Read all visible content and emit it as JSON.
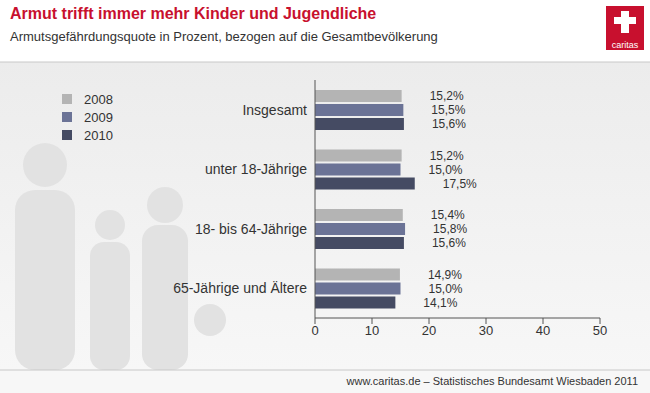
{
  "chart_data": {
    "type": "bar",
    "orientation": "horizontal",
    "title": "Armut trifft immer mehr Kinder und Jugendliche",
    "subtitle": "Armutsgefährdungsquote in Prozent, bezogen auf die Gesamtbevölkerung",
    "source": "www.caritas.de – Statistisches Bundesamt Wiesbaden 2011",
    "logo": "caritas",
    "categories": [
      "Insgesamt",
      "unter 18-Jährige",
      "18- bis 64-Jährige",
      "65-Jährige und Ältere"
    ],
    "series": [
      {
        "name": "2008",
        "color": "#b4b4b4",
        "values": [
          15.2,
          15.2,
          15.4,
          14.9
        ],
        "value_labels": [
          "15,2%",
          "15,2%",
          "15,4%",
          "14,9%"
        ]
      },
      {
        "name": "2009",
        "color": "#6b7396",
        "values": [
          15.5,
          15.0,
          15.8,
          15.0
        ],
        "value_labels": [
          "15,5%",
          "15,0%",
          "15,8%",
          "15,0%"
        ]
      },
      {
        "name": "2010",
        "color": "#454b63",
        "values": [
          15.6,
          17.5,
          15.6,
          14.1
        ],
        "value_labels": [
          "15,6%",
          "17,5%",
          "15,6%",
          "14,1%"
        ]
      }
    ],
    "xlim": [
      0,
      50
    ],
    "xticks": [
      0,
      10,
      20,
      30,
      40,
      50
    ],
    "grid": false,
    "legend": "top-left",
    "data_labels": true
  }
}
